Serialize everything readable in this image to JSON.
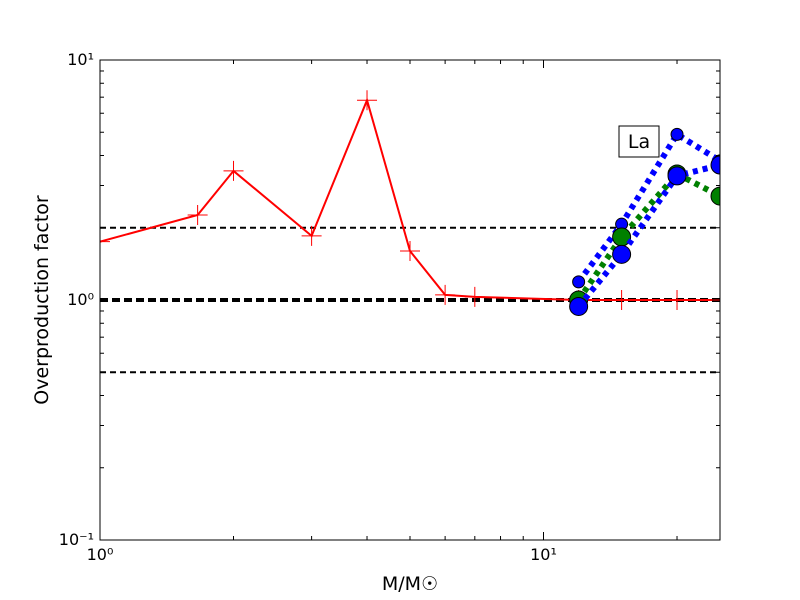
{
  "chart_data": {
    "type": "line",
    "xlabel": "M/M☉",
    "ylabel": "Overproduction factor",
    "annotation": "La",
    "xscale": "log",
    "yscale": "log",
    "xlim": [
      1,
      25
    ],
    "ylim": [
      0.1,
      10
    ],
    "xticks": [
      {
        "value": 1,
        "label": "10⁰"
      },
      {
        "value": 10,
        "label": "10¹"
      }
    ],
    "yticks": [
      {
        "value": 0.1,
        "label": "10⁻¹"
      },
      {
        "value": 1,
        "label": "10⁰"
      },
      {
        "value": 10,
        "label": "10¹"
      }
    ],
    "reference_lines": [
      0.5,
      1,
      2
    ],
    "series": [
      {
        "color": "#ff0000",
        "marker": "+",
        "linestyle": "solid",
        "x": [
          1,
          1.66,
          2,
          3,
          4,
          5,
          6,
          7,
          12,
          15,
          20,
          25
        ],
        "values": [
          1.75,
          2.26,
          3.45,
          1.85,
          6.8,
          1.6,
          1.05,
          1.03,
          1.0,
          1.0,
          1.0,
          1.0
        ]
      },
      {
        "color": "#0000ff",
        "marker": "o",
        "markersize": 6,
        "linestyle": "dotted",
        "x": [
          12,
          15,
          20,
          25
        ],
        "values": [
          1.19,
          2.07,
          4.9,
          3.8
        ]
      },
      {
        "color": "#008000",
        "marker": "o",
        "markersize": 9,
        "linestyle": "dotted",
        "x": [
          12,
          15,
          20,
          25
        ],
        "values": [
          1.0,
          1.83,
          3.35,
          2.71
        ]
      },
      {
        "color": "#0000ff",
        "marker": "o",
        "markersize": 9,
        "linestyle": "dotted",
        "x": [
          12,
          15,
          20,
          25
        ],
        "values": [
          0.94,
          1.55,
          3.29,
          3.65
        ]
      }
    ]
  }
}
